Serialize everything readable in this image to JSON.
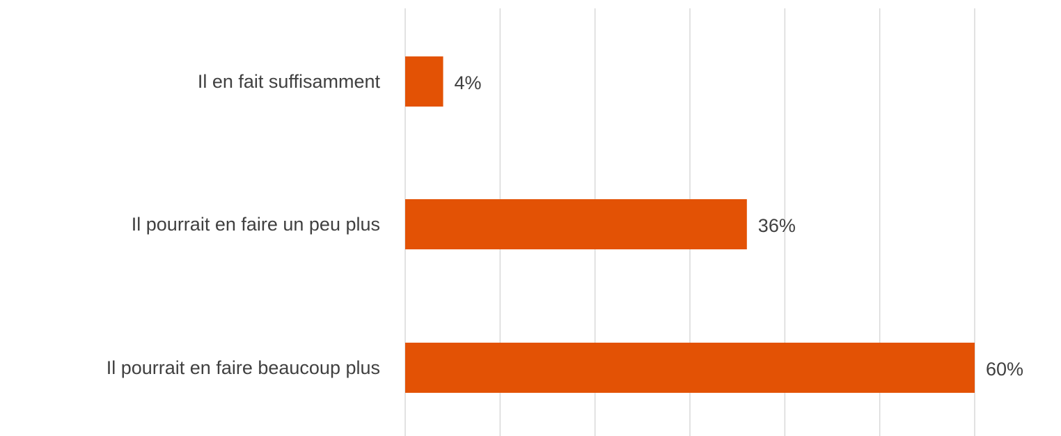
{
  "chart_data": {
    "type": "bar",
    "orientation": "horizontal",
    "categories": [
      "Il en fait suffisamment",
      "Il pourrait en faire un peu plus",
      "Il pourrait en faire beaucoup plus"
    ],
    "values": [
      4,
      36,
      60
    ],
    "data_labels": [
      "4%",
      "36%",
      "60%"
    ],
    "unit": "%",
    "xlim": [
      0,
      60
    ],
    "grid_step": 10,
    "grid": true,
    "legend": "none",
    "bar_color": "#E35205",
    "grid_color": "#D9D9D9",
    "text_color": "#404040"
  }
}
